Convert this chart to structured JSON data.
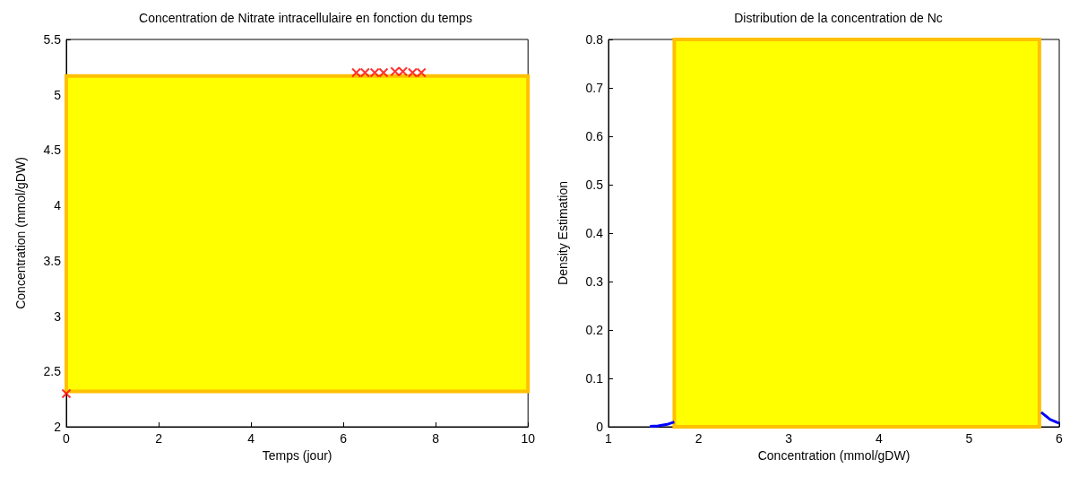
{
  "chart_data": [
    {
      "type": "scatter",
      "title": "Concentration de Nitrate intracellulaire en fonction du temps",
      "xlabel": "Temps (jour)",
      "ylabel": "Concentration (mmol/gDW)",
      "marker": "cross",
      "grid": false,
      "bands": [
        {
          "axis": "y",
          "from": 2.32,
          "to": 5.17,
          "color": "#ffff00"
        }
      ],
      "xlim": [
        0,
        10
      ],
      "xticks": [
        0,
        2,
        4,
        6,
        8,
        10
      ],
      "ylim": [
        2,
        5.5
      ],
      "yticks": [
        2,
        2.5,
        3,
        3.5,
        4,
        4.5,
        5,
        5.5
      ],
      "series": [
        {
          "color": "#ff0000",
          "x": [
            0,
            6.28,
            6.47,
            6.68,
            6.87,
            7.12,
            7.29,
            7.5,
            7.69
          ],
          "values": [
            2.3,
            5.2,
            5.2,
            5.2,
            5.2,
            5.21,
            5.21,
            5.2,
            5.2
          ]
        }
      ]
    },
    {
      "type": "line",
      "title": "Distribution de la concentration de Nc",
      "xlabel": "Concentration (mmol/gDW)",
      "ylabel": "Density Estimation",
      "marker": "none",
      "grid": false,
      "bands": [
        {
          "axis": "x",
          "from": 1.73,
          "to": 5.78,
          "color": "#ffff00"
        }
      ],
      "xlim": [
        1,
        6
      ],
      "xticks": [
        1,
        2,
        3,
        4,
        5,
        6
      ],
      "ylim": [
        0,
        0.8
      ],
      "yticks": [
        0,
        0.1,
        0.2,
        0.3,
        0.4,
        0.5,
        0.6,
        0.7,
        0.8
      ],
      "series": [
        {
          "color": "#0000ff",
          "x": [
            1.46,
            1.55,
            1.65,
            1.73,
            1.8,
            5.75,
            5.8,
            5.9,
            6
          ],
          "values": [
            0.001,
            0.002,
            0.005,
            0.01,
            null,
            null,
            0.03,
            0.015,
            0.007
          ]
        }
      ]
    }
  ]
}
